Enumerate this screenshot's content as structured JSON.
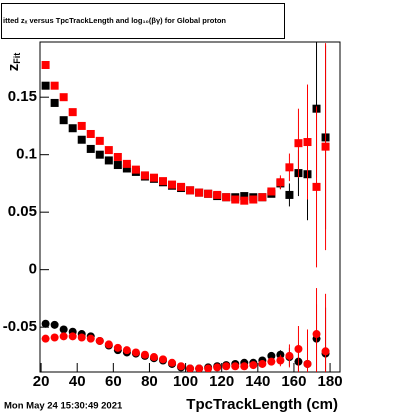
{
  "chart_data": {
    "type": "scatter",
    "title": "itted  zₓ versus TpcTrackLength and log₁₀(βγ) for Global proton",
    "y_label": "z",
    "y_label_sub": "Fit",
    "x_label": "TpcTrackLength (cm)",
    "timestamp": "Mon May 24 15:30:49 2021",
    "x": [
      22.5,
      27.5,
      32.5,
      37.5,
      42.5,
      47.5,
      52.5,
      57.5,
      62.5,
      67.5,
      72.5,
      77.5,
      82.5,
      87.5,
      92.5,
      97.5,
      102.5,
      107.5,
      112.5,
      117.5,
      122.5,
      127.5,
      132.5,
      137.5,
      142.5,
      147.5,
      152.5,
      157.5,
      162.5,
      167.5,
      172.5,
      177.5
    ],
    "series": [
      {
        "color": "#000000",
        "marker": "square",
        "values": [
          0.16,
          0.145,
          0.13,
          0.123,
          0.113,
          0.105,
          0.1,
          0.095,
          0.091,
          0.088,
          0.085,
          0.081,
          0.079,
          0.076,
          0.073,
          0.071,
          0.069,
          0.067,
          0.066,
          0.064,
          0.063,
          0.063,
          0.064,
          0.063,
          0.063,
          0.066,
          0.075,
          0.065,
          0.084,
          0.083,
          0.14,
          0.115
        ],
        "errors": [
          0.001,
          0.001,
          0.001,
          0.001,
          0.001,
          0.001,
          0.001,
          0.001,
          0.001,
          0.001,
          0.001,
          0.001,
          0.001,
          0.001,
          0.001,
          0.001,
          0.001,
          0.001,
          0.001,
          0.001,
          0.001,
          0.001,
          0.001,
          0.001,
          0.002,
          0.003,
          0.005,
          0.01,
          0.02,
          0.04,
          0.06,
          0.08
        ]
      },
      {
        "color": "#ff0000",
        "marker": "square",
        "values": [
          0.178,
          0.16,
          0.15,
          0.137,
          0.125,
          0.118,
          0.112,
          0.104,
          0.098,
          0.092,
          0.087,
          0.082,
          0.08,
          0.077,
          0.074,
          0.072,
          0.069,
          0.067,
          0.066,
          0.065,
          0.063,
          0.061,
          0.06,
          0.061,
          0.063,
          0.068,
          0.076,
          0.089,
          0.11,
          0.111,
          0.072,
          0.107
        ],
        "errors": [
          0.001,
          0.001,
          0.001,
          0.001,
          0.001,
          0.001,
          0.001,
          0.001,
          0.001,
          0.001,
          0.001,
          0.001,
          0.001,
          0.001,
          0.001,
          0.001,
          0.001,
          0.001,
          0.001,
          0.001,
          0.001,
          0.001,
          0.001,
          0.001,
          0.002,
          0.003,
          0.006,
          0.012,
          0.03,
          0.05,
          0.07,
          0.09
        ]
      },
      {
        "color": "#000000",
        "marker": "circle",
        "values": [
          -0.047,
          -0.048,
          -0.052,
          -0.054,
          -0.056,
          -0.058,
          -0.062,
          -0.066,
          -0.07,
          -0.072,
          -0.073,
          -0.075,
          -0.077,
          -0.079,
          -0.082,
          -0.085,
          -0.086,
          -0.086,
          -0.085,
          -0.084,
          -0.083,
          -0.082,
          -0.081,
          -0.081,
          -0.079,
          -0.075,
          -0.074,
          -0.076,
          -0.08,
          -0.082,
          -0.06,
          -0.073
        ],
        "errors": [
          0.001,
          0.001,
          0.001,
          0.001,
          0.001,
          0.001,
          0.001,
          0.001,
          0.001,
          0.001,
          0.001,
          0.001,
          0.001,
          0.001,
          0.001,
          0.001,
          0.001,
          0.001,
          0.001,
          0.001,
          0.001,
          0.001,
          0.001,
          0.001,
          0.002,
          0.003,
          0.004,
          0.008,
          0.015,
          0.02,
          0.03,
          0.04
        ]
      },
      {
        "color": "#ff0000",
        "marker": "circle",
        "values": [
          -0.06,
          -0.059,
          -0.058,
          -0.058,
          -0.059,
          -0.06,
          -0.062,
          -0.065,
          -0.068,
          -0.07,
          -0.072,
          -0.074,
          -0.076,
          -0.078,
          -0.081,
          -0.084,
          -0.086,
          -0.086,
          -0.086,
          -0.085,
          -0.084,
          -0.084,
          -0.084,
          -0.083,
          -0.082,
          -0.08,
          -0.079,
          -0.075,
          -0.069,
          -0.082,
          -0.056,
          -0.071
        ],
        "errors": [
          0.001,
          0.001,
          0.001,
          0.001,
          0.001,
          0.001,
          0.001,
          0.001,
          0.001,
          0.001,
          0.001,
          0.001,
          0.001,
          0.001,
          0.001,
          0.001,
          0.001,
          0.001,
          0.001,
          0.001,
          0.001,
          0.001,
          0.001,
          0.001,
          0.002,
          0.003,
          0.005,
          0.01,
          0.02,
          0.03,
          0.04,
          0.05
        ]
      }
    ],
    "xlim": [
      19.4,
      185.5
    ],
    "ylim": [
      -0.089,
      0.198
    ],
    "xticks": [
      20,
      40,
      60,
      80,
      100,
      120,
      140,
      160,
      180
    ],
    "yticks": [
      -0.05,
      0,
      0.05,
      0.1,
      0.15
    ]
  }
}
